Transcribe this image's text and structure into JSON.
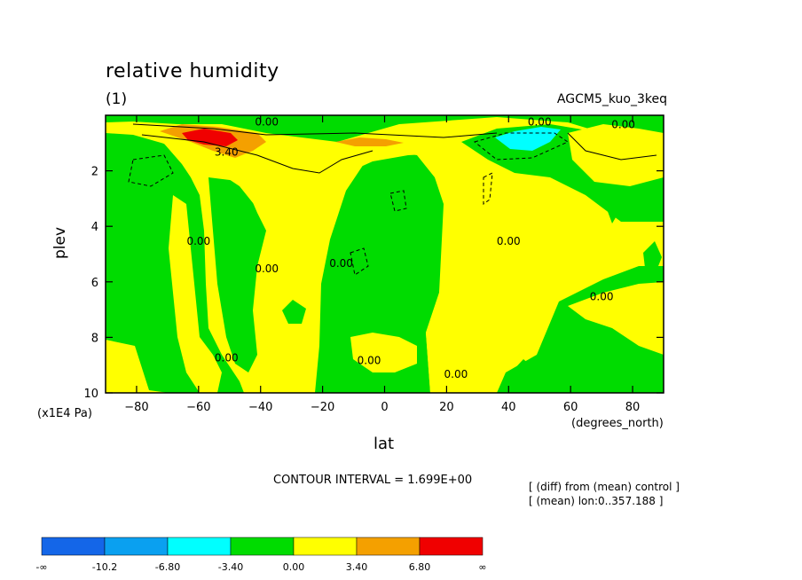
{
  "chart_data": {
    "type": "heatmap",
    "title": "relative humidity",
    "subtitle": "(1)",
    "model_label": "AGCM5_kuo_3keq",
    "xlabel": "lat",
    "xunits": "(degrees_north)",
    "ylabel": "plev",
    "yunits": "(x1E4 Pa)",
    "xlim": [
      -90,
      90
    ],
    "ylim": [
      10,
      0
    ],
    "x_ticks": [
      -80,
      -60,
      -40,
      -20,
      0,
      20,
      40,
      60,
      80
    ],
    "y_ticks": [
      2,
      4,
      6,
      8,
      10
    ],
    "contour_interval": "CONTOUR INTERVAL = 1.699E+00",
    "notes": [
      "[ (diff) from (mean) control ]",
      "[ (mean) lon:0..357.188 ]"
    ],
    "contour_labels": [
      {
        "text": "0.00",
        "x": -38,
        "y": 0.2
      },
      {
        "text": "3.40",
        "x": -51,
        "y": 1.3
      },
      {
        "text": "0.00",
        "x": 50,
        "y": 0.2
      },
      {
        "text": "0.00",
        "x": 77,
        "y": 0.3
      },
      {
        "text": "0.00",
        "x": -60,
        "y": 4.5
      },
      {
        "text": "0.00",
        "x": -38,
        "y": 5.5
      },
      {
        "text": "0.00",
        "x": -14,
        "y": 5.3
      },
      {
        "text": "0.00",
        "x": 40,
        "y": 4.5
      },
      {
        "text": "0.00",
        "x": 70,
        "y": 6.5
      },
      {
        "text": "0.00",
        "x": -5,
        "y": 8.8
      },
      {
        "text": "0.00",
        "x": -51,
        "y": 8.7
      },
      {
        "text": "0.00",
        "x": 23,
        "y": 9.3
      }
    ],
    "colorbar": {
      "colors": [
        "#1466e8",
        "#0aa0f0",
        "#00ffff",
        "#00dc00",
        "#ffff00",
        "#f4a000",
        "#f00000"
      ],
      "labels": [
        "-∞",
        "-10.2",
        "-6.80",
        "-3.40",
        "0.00",
        "3.40",
        "6.80",
        "∞"
      ]
    },
    "regions": [
      {
        "name": "background-positive",
        "level": "0.00 to 3.40",
        "color": "#ffff00"
      },
      {
        "name": "negative",
        "level": "-3.40 to 0.00",
        "color": "#00dc00"
      },
      {
        "name": "strong-positive",
        "level": "3.40 to 6.80",
        "color": "#f4a000"
      },
      {
        "name": "max-positive",
        "level": "> 6.80",
        "color": "#f00000"
      },
      {
        "name": "strong-negative",
        "level": "-6.80 to -3.40",
        "color": "#00ffff"
      }
    ]
  }
}
